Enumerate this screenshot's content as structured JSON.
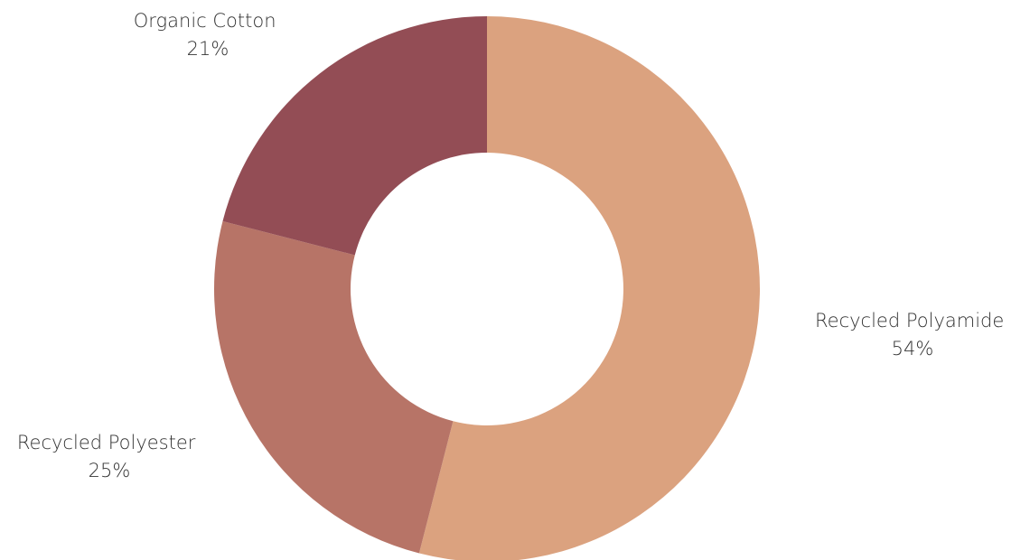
{
  "chart_data": {
    "type": "pie",
    "donut": true,
    "start_angle_deg": 0,
    "direction": "clockwise",
    "categories": [
      "Recycled Polyamide",
      "Recycled Polyester",
      "Organic Cotton"
    ],
    "values": [
      54,
      25,
      21
    ],
    "value_labels": [
      "54%",
      "25%",
      "21%"
    ],
    "colors": [
      "#dba27f",
      "#b77467",
      "#934d55"
    ],
    "background": "#ffffff",
    "legend": "none"
  }
}
